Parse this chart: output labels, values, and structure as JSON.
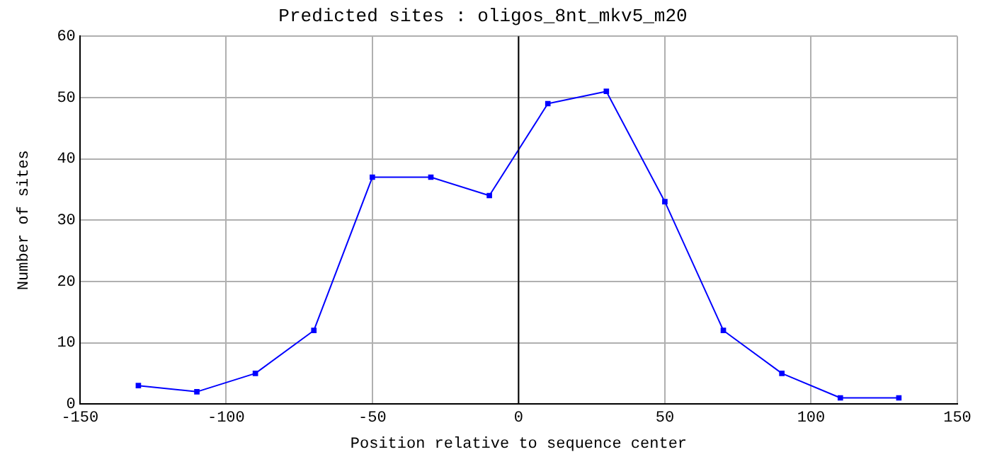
{
  "chart_data": {
    "type": "line",
    "title": "Predicted sites : oligos_8nt_mkv5_m20",
    "xlabel": "Position relative to sequence center",
    "ylabel": "Number of sites",
    "x": [
      -130,
      -110,
      -90,
      -70,
      -50,
      -30,
      -10,
      10,
      30,
      50,
      70,
      90,
      110,
      130
    ],
    "series": [
      {
        "color": "#0000ff",
        "values": [
          3,
          2,
          5,
          12,
          37,
          37,
          34,
          49,
          51,
          33,
          12,
          5,
          1,
          1
        ]
      }
    ],
    "xlim": [
      -150,
      150
    ],
    "xticks": [
      -150,
      -100,
      -50,
      0,
      50,
      100,
      150
    ],
    "ylim": [
      0,
      60
    ],
    "yticks": [
      0,
      10,
      20,
      30,
      40,
      50,
      60
    ],
    "grid": true,
    "legend": false,
    "marker": "square",
    "line_style": "solid",
    "ref_lines": [
      {
        "axis": "x",
        "value": 0,
        "color": "#000000"
      }
    ]
  }
}
